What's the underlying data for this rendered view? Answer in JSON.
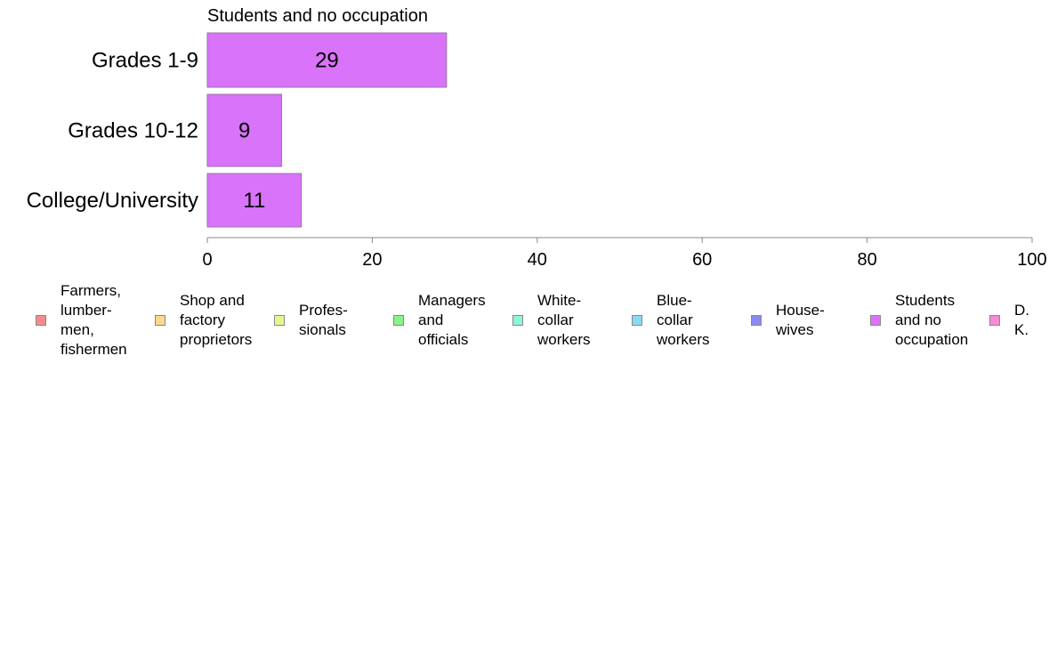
{
  "chart_data": {
    "type": "bar",
    "orientation": "horizontal",
    "title": "Students and no occupation",
    "categories": [
      "Grades 1-9",
      "Grades 10-12",
      "College/University"
    ],
    "series": [
      {
        "name": "Students and no occupation",
        "values": [
          29,
          9,
          11.4
        ],
        "labels": [
          "29",
          "9",
          "11"
        ],
        "color": "#d973f9"
      }
    ],
    "xlim": [
      0,
      100
    ],
    "xticks": [
      "0",
      "20",
      "40",
      "60",
      "80",
      "100"
    ],
    "grid": false,
    "legend_position": "bottom",
    "legend": [
      {
        "label": "Farmers,\nlumber-\nmen,\nfishermen",
        "color": "#f28b8b"
      },
      {
        "label": "Shop and\nfactory\nproprietors",
        "color": "#f9d98a"
      },
      {
        "label": "Profes-\nsionals",
        "color": "#e7f58f"
      },
      {
        "label": "Managers\nand\nofficials",
        "color": "#8af28a"
      },
      {
        "label": "White-\ncollar\nworkers",
        "color": "#8ef5d9"
      },
      {
        "label": "Blue-collar\nworkers",
        "color": "#8ad9f7"
      },
      {
        "label": "House-\nwives",
        "color": "#8a8af2"
      },
      {
        "label": "Students\nand no\noccupation",
        "color": "#d973f9"
      },
      {
        "label": "D. K.",
        "color": "#f58ad9"
      }
    ]
  }
}
